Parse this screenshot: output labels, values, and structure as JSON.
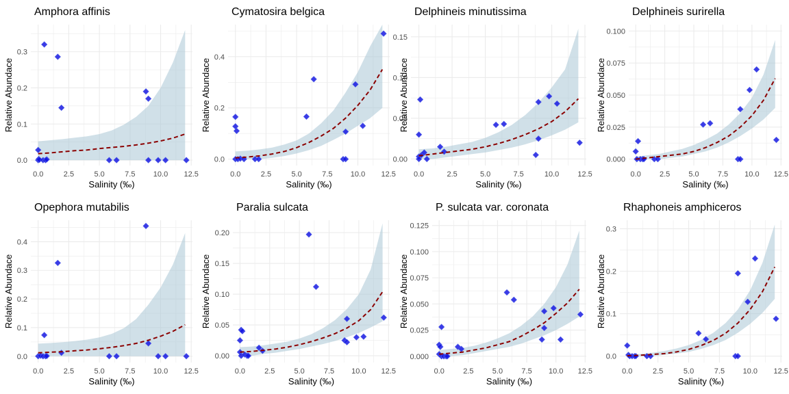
{
  "chart_data": [
    {
      "type": "scatter",
      "title": "Amphora affinis",
      "xlabel": "Salinity (‰)",
      "ylabel": "Relative Abundace",
      "xlim": [
        -0.6,
        12.6
      ],
      "ylim": [
        -0.015,
        0.375
      ],
      "xticks": [
        0,
        2.5,
        5,
        7.5,
        10,
        12.5
      ],
      "xtick_labels": [
        "0.0",
        "2.5",
        "5.0",
        "7.5",
        "10.0",
        "12.5"
      ],
      "yticks": [
        0,
        0.1,
        0.2,
        0.3
      ],
      "ytick_labels": [
        "0.0",
        "0.1",
        "0.2",
        "0.3"
      ],
      "points": [
        [
          0.0,
          0.028
        ],
        [
          0.0,
          0.0
        ],
        [
          0.05,
          0.003
        ],
        [
          0.1,
          0.001
        ],
        [
          0.4,
          0.0
        ],
        [
          0.5,
          0.32
        ],
        [
          0.6,
          0.0
        ],
        [
          0.7,
          0.002
        ],
        [
          1.6,
          0.286
        ],
        [
          1.9,
          0.145
        ],
        [
          5.8,
          0.0
        ],
        [
          6.4,
          0.0
        ],
        [
          8.8,
          0.19
        ],
        [
          9.0,
          0.17
        ],
        [
          9.0,
          0.0
        ],
        [
          9.8,
          0.0
        ],
        [
          10.4,
          0.0
        ],
        [
          12.1,
          0.0
        ]
      ],
      "fit": {
        "x": [
          0,
          1,
          2,
          3,
          4,
          5,
          6,
          7,
          8,
          9,
          10,
          11,
          12
        ],
        "y": [
          0.018,
          0.02,
          0.023,
          0.026,
          0.028,
          0.032,
          0.035,
          0.038,
          0.042,
          0.047,
          0.053,
          0.061,
          0.072
        ]
      },
      "ci_lower": [
        0.0,
        0.0,
        0.0,
        0.0,
        0.0,
        0.0,
        0.0,
        0.0,
        0.0,
        0.0,
        0.0,
        0.0,
        0.0
      ],
      "ci_upper": [
        0.052,
        0.055,
        0.058,
        0.062,
        0.066,
        0.072,
        0.082,
        0.098,
        0.12,
        0.15,
        0.2,
        0.27,
        0.36
      ]
    },
    {
      "type": "scatter",
      "title": "Cymatosira belgica",
      "xlabel": "Salinity (‰)",
      "ylabel": "Relative Abundace",
      "xlim": [
        -0.6,
        12.6
      ],
      "ylim": [
        -0.025,
        0.525
      ],
      "xticks": [
        0,
        2.5,
        5,
        7.5,
        10,
        12.5
      ],
      "xtick_labels": [
        "0.0",
        "2.5",
        "5.0",
        "7.5",
        "10.0",
        "12.5"
      ],
      "yticks": [
        0,
        0.2,
        0.4
      ],
      "ytick_labels": [
        "0.0",
        "0.2",
        "0.4"
      ],
      "points": [
        [
          0.0,
          0.165
        ],
        [
          0.0,
          0.128
        ],
        [
          0.1,
          0.11
        ],
        [
          0.0,
          0.0
        ],
        [
          0.2,
          0.0
        ],
        [
          0.4,
          0.002
        ],
        [
          0.7,
          0.0
        ],
        [
          1.6,
          0.0
        ],
        [
          1.9,
          0.0
        ],
        [
          5.8,
          0.166
        ],
        [
          6.4,
          0.312
        ],
        [
          8.8,
          0.0
        ],
        [
          9.0,
          0.0
        ],
        [
          9.0,
          0.107
        ],
        [
          9.8,
          0.292
        ],
        [
          10.4,
          0.13
        ],
        [
          12.1,
          0.49
        ]
      ],
      "fit": {
        "x": [
          0,
          1,
          2,
          3,
          4,
          5,
          6,
          7,
          8,
          9,
          10,
          11,
          12
        ],
        "y": [
          0.005,
          0.008,
          0.013,
          0.02,
          0.03,
          0.045,
          0.065,
          0.09,
          0.12,
          0.16,
          0.21,
          0.27,
          0.35
        ]
      },
      "ci_lower": [
        0.0,
        0.0,
        0.0,
        0.005,
        0.012,
        0.022,
        0.035,
        0.052,
        0.075,
        0.1,
        0.13,
        0.16,
        0.2
      ],
      "ci_upper": [
        0.03,
        0.033,
        0.038,
        0.045,
        0.057,
        0.073,
        0.1,
        0.14,
        0.19,
        0.26,
        0.34,
        0.44,
        0.55
      ]
    },
    {
      "type": "scatter",
      "title": "Delphineis minutissima",
      "xlabel": "Salinity (‰)",
      "ylabel": "Relative Abundace",
      "xlim": [
        -0.6,
        12.6
      ],
      "ylim": [
        -0.008,
        0.165
      ],
      "xticks": [
        0,
        2.5,
        5,
        7.5,
        10,
        12.5
      ],
      "xtick_labels": [
        "0.0",
        "2.5",
        "5.0",
        "7.5",
        "10.0",
        "12.5"
      ],
      "yticks": [
        0,
        0.05,
        0.1,
        0.15
      ],
      "ytick_labels": [
        "0.00",
        "0.05",
        "0.10",
        "0.15"
      ],
      "points": [
        [
          0.0,
          0.03
        ],
        [
          0.1,
          0.073
        ],
        [
          0.0,
          0.003
        ],
        [
          0.0,
          0.0
        ],
        [
          0.2,
          0.005
        ],
        [
          0.4,
          0.008
        ],
        [
          0.6,
          0.0
        ],
        [
          1.6,
          0.015
        ],
        [
          1.9,
          0.009
        ],
        [
          5.8,
          0.042
        ],
        [
          6.4,
          0.043
        ],
        [
          8.8,
          0.005
        ],
        [
          9.0,
          0.07
        ],
        [
          9.0,
          0.025
        ],
        [
          9.8,
          0.077
        ],
        [
          10.4,
          0.068
        ],
        [
          12.1,
          0.02
        ]
      ],
      "fit": {
        "x": [
          0,
          1,
          2,
          3,
          4,
          5,
          6,
          7,
          8,
          9,
          10,
          11,
          12
        ],
        "y": [
          0.004,
          0.006,
          0.008,
          0.01,
          0.012,
          0.015,
          0.019,
          0.024,
          0.03,
          0.037,
          0.046,
          0.058,
          0.074
        ]
      },
      "ci_lower": [
        0.0,
        0.0,
        0.002,
        0.004,
        0.006,
        0.008,
        0.011,
        0.014,
        0.018,
        0.023,
        0.029,
        0.036,
        0.045
      ],
      "ci_upper": [
        0.012,
        0.013,
        0.015,
        0.018,
        0.021,
        0.026,
        0.033,
        0.042,
        0.054,
        0.069,
        0.088,
        0.11,
        0.16
      ]
    },
    {
      "type": "scatter",
      "title": "Delphineis surirella",
      "xlabel": "Salinity (‰)",
      "ylabel": "Relative Abundace",
      "xlim": [
        -0.6,
        12.6
      ],
      "ylim": [
        -0.005,
        0.105
      ],
      "xticks": [
        0,
        2.5,
        5,
        7.5,
        10,
        12.5
      ],
      "xtick_labels": [
        "0.0",
        "2.5",
        "5.0",
        "7.5",
        "10.0",
        "12.5"
      ],
      "yticks": [
        0,
        0.025,
        0.05,
        0.075,
        0.1
      ],
      "ytick_labels": [
        "0.000",
        "0.025",
        "0.050",
        "0.075",
        "0.100"
      ],
      "points": [
        [
          0.0,
          0.006
        ],
        [
          0.1,
          0.0
        ],
        [
          0.2,
          0.014
        ],
        [
          0.4,
          0.0
        ],
        [
          0.6,
          0.0
        ],
        [
          0.7,
          0.0
        ],
        [
          1.6,
          0.0
        ],
        [
          1.9,
          0.0
        ],
        [
          5.8,
          0.027
        ],
        [
          6.4,
          0.028
        ],
        [
          8.8,
          0.0
        ],
        [
          9.0,
          0.0
        ],
        [
          9.0,
          0.039
        ],
        [
          9.8,
          0.054
        ],
        [
          10.4,
          0.07
        ],
        [
          12.1,
          0.015
        ]
      ],
      "fit": {
        "x": [
          0,
          1,
          2,
          3,
          4,
          5,
          6,
          7,
          8,
          9,
          10,
          11,
          12
        ],
        "y": [
          0.0,
          0.001,
          0.002,
          0.003,
          0.004,
          0.006,
          0.009,
          0.013,
          0.018,
          0.025,
          0.034,
          0.046,
          0.063
        ]
      },
      "ci_lower": [
        0.0,
        0.0,
        0.0,
        0.001,
        0.002,
        0.004,
        0.006,
        0.009,
        0.013,
        0.018,
        0.024,
        0.031,
        0.04
      ],
      "ci_upper": [
        0.002,
        0.003,
        0.004,
        0.006,
        0.008,
        0.011,
        0.015,
        0.02,
        0.027,
        0.036,
        0.048,
        0.066,
        0.093
      ]
    },
    {
      "type": "scatter",
      "title": "Opephora mutabilis",
      "xlabel": "Salinity (‰)",
      "ylabel": "Relative Abundace",
      "xlim": [
        -0.6,
        12.6
      ],
      "ylim": [
        -0.022,
        0.475
      ],
      "xticks": [
        0,
        2.5,
        5,
        7.5,
        10,
        12.5
      ],
      "xtick_labels": [
        "0.0",
        "2.5",
        "5.0",
        "7.5",
        "10.0",
        "12.5"
      ],
      "yticks": [
        0,
        0.1,
        0.2,
        0.3,
        0.4
      ],
      "ytick_labels": [
        "0.0",
        "0.1",
        "0.2",
        "0.3",
        "0.4"
      ],
      "points": [
        [
          0.0,
          0.0
        ],
        [
          0.2,
          0.002
        ],
        [
          0.4,
          0.0
        ],
        [
          0.5,
          0.074
        ],
        [
          0.6,
          0.0
        ],
        [
          0.7,
          0.001
        ],
        [
          1.6,
          0.326
        ],
        [
          1.9,
          0.012
        ],
        [
          5.8,
          0.0
        ],
        [
          6.4,
          0.0
        ],
        [
          8.8,
          0.455
        ],
        [
          9.0,
          0.045
        ],
        [
          9.8,
          0.0
        ],
        [
          10.4,
          0.0
        ],
        [
          12.1,
          0.0
        ]
      ],
      "fit": {
        "x": [
          0,
          1,
          2,
          3,
          4,
          5,
          6,
          7,
          8,
          9,
          10,
          11,
          12
        ],
        "y": [
          0.012,
          0.014,
          0.016,
          0.019,
          0.022,
          0.026,
          0.031,
          0.037,
          0.045,
          0.056,
          0.07,
          0.087,
          0.11
        ]
      },
      "ci_lower": [
        0.0,
        0.0,
        0.0,
        0.0,
        0.0,
        0.0,
        0.0,
        0.0,
        0.0,
        0.0,
        0.0,
        0.0,
        0.0
      ],
      "ci_upper": [
        0.044,
        0.046,
        0.049,
        0.053,
        0.058,
        0.066,
        0.078,
        0.098,
        0.13,
        0.18,
        0.24,
        0.32,
        0.43
      ]
    },
    {
      "type": "scatter",
      "title": "Paralia sulcata",
      "xlabel": "Salinity (‰)",
      "ylabel": "Relative Abundace",
      "xlim": [
        -0.6,
        12.6
      ],
      "ylim": [
        -0.011,
        0.22
      ],
      "xticks": [
        0,
        2.5,
        5,
        7.5,
        10,
        12.5
      ],
      "xtick_labels": [
        "0.0",
        "2.5",
        "5.0",
        "7.5",
        "10.0",
        "12.5"
      ],
      "yticks": [
        0,
        0.05,
        0.1,
        0.15,
        0.2
      ],
      "ytick_labels": [
        "0.00",
        "0.05",
        "0.10",
        "0.15",
        "0.20"
      ],
      "points": [
        [
          0.0,
          0.025
        ],
        [
          0.1,
          0.042
        ],
        [
          0.0,
          0.006
        ],
        [
          0.1,
          0.0
        ],
        [
          0.2,
          0.04
        ],
        [
          0.4,
          0.002
        ],
        [
          0.6,
          0.0
        ],
        [
          0.7,
          0.0
        ],
        [
          1.6,
          0.013
        ],
        [
          1.9,
          0.008
        ],
        [
          5.8,
          0.197
        ],
        [
          6.4,
          0.112
        ],
        [
          8.8,
          0.025
        ],
        [
          9.0,
          0.06
        ],
        [
          9.0,
          0.022
        ],
        [
          9.8,
          0.03
        ],
        [
          10.4,
          0.031
        ],
        [
          12.1,
          0.062
        ]
      ],
      "fit": {
        "x": [
          0,
          1,
          2,
          3,
          4,
          5,
          6,
          7,
          8,
          9,
          10,
          11,
          12
        ],
        "y": [
          0.006,
          0.007,
          0.009,
          0.011,
          0.014,
          0.018,
          0.023,
          0.029,
          0.036,
          0.045,
          0.057,
          0.075,
          0.104
        ]
      },
      "ci_lower": [
        0.0,
        0.0,
        0.003,
        0.005,
        0.008,
        0.011,
        0.015,
        0.019,
        0.024,
        0.03,
        0.037,
        0.046,
        0.056
      ],
      "ci_upper": [
        0.014,
        0.015,
        0.017,
        0.02,
        0.023,
        0.028,
        0.035,
        0.045,
        0.058,
        0.076,
        0.1,
        0.14,
        0.215
      ]
    },
    {
      "type": "scatter",
      "title": "P. sulcata var. coronata",
      "xlabel": "Salinity (‰)",
      "ylabel": "Relative Abundace",
      "xlim": [
        -0.6,
        12.6
      ],
      "ylim": [
        -0.006,
        0.13
      ],
      "xticks": [
        0,
        2.5,
        5,
        7.5,
        10,
        12.5
      ],
      "xtick_labels": [
        "0.0",
        "2.5",
        "5.0",
        "7.5",
        "10.0",
        "12.5"
      ],
      "yticks": [
        0,
        0.025,
        0.05,
        0.075,
        0.1,
        0.125
      ],
      "ytick_labels": [
        "0.000",
        "0.025",
        "0.050",
        "0.075",
        "0.100",
        "0.125"
      ],
      "points": [
        [
          0.0,
          0.011
        ],
        [
          0.1,
          0.009
        ],
        [
          0.0,
          0.002
        ],
        [
          0.2,
          0.028
        ],
        [
          0.2,
          0.0
        ],
        [
          0.4,
          0.0
        ],
        [
          0.6,
          0.0
        ],
        [
          0.7,
          0.0
        ],
        [
          1.6,
          0.009
        ],
        [
          1.9,
          0.007
        ],
        [
          5.8,
          0.061
        ],
        [
          6.4,
          0.054
        ],
        [
          8.8,
          0.016
        ],
        [
          9.0,
          0.043
        ],
        [
          9.0,
          0.027
        ],
        [
          9.8,
          0.046
        ],
        [
          10.4,
          0.016
        ],
        [
          12.1,
          0.04
        ]
      ],
      "fit": {
        "x": [
          0,
          1,
          2,
          3,
          4,
          5,
          6,
          7,
          8,
          9,
          10,
          11,
          12
        ],
        "y": [
          0.002,
          0.003,
          0.004,
          0.006,
          0.008,
          0.011,
          0.014,
          0.019,
          0.025,
          0.032,
          0.041,
          0.051,
          0.064
        ]
      },
      "ci_lower": [
        0.0,
        0.0,
        0.001,
        0.003,
        0.005,
        0.007,
        0.009,
        0.012,
        0.016,
        0.02,
        0.025,
        0.031,
        0.038
      ],
      "ci_upper": [
        0.006,
        0.007,
        0.008,
        0.01,
        0.013,
        0.017,
        0.022,
        0.029,
        0.038,
        0.05,
        0.066,
        0.088,
        0.12
      ]
    },
    {
      "type": "scatter",
      "title": "Rhaphoneis amphiceros",
      "xlabel": "Salinity (‰)",
      "ylabel": "Relative Abundace",
      "xlim": [
        -0.6,
        12.6
      ],
      "ylim": [
        -0.015,
        0.32
      ],
      "xticks": [
        0,
        2.5,
        5,
        7.5,
        10,
        12.5
      ],
      "xtick_labels": [
        "0.0",
        "2.5",
        "5.0",
        "7.5",
        "10.0",
        "12.5"
      ],
      "yticks": [
        0,
        0.1,
        0.2,
        0.3
      ],
      "ytick_labels": [
        "0.0",
        "0.1",
        "0.2",
        "0.3"
      ],
      "points": [
        [
          0.0,
          0.025
        ],
        [
          0.1,
          0.003
        ],
        [
          0.2,
          0.0
        ],
        [
          0.4,
          0.0
        ],
        [
          0.6,
          0.0
        ],
        [
          0.7,
          0.0
        ],
        [
          1.6,
          0.0
        ],
        [
          1.9,
          0.0
        ],
        [
          5.8,
          0.054
        ],
        [
          6.4,
          0.04
        ],
        [
          8.8,
          0.0
        ],
        [
          9.0,
          0.0
        ],
        [
          9.0,
          0.195
        ],
        [
          9.8,
          0.128
        ],
        [
          10.4,
          0.23
        ],
        [
          12.1,
          0.088
        ]
      ],
      "fit": {
        "x": [
          0,
          1,
          2,
          3,
          4,
          5,
          6,
          7,
          8,
          9,
          10,
          11,
          12
        ],
        "y": [
          0.001,
          0.002,
          0.004,
          0.006,
          0.01,
          0.016,
          0.025,
          0.037,
          0.054,
          0.078,
          0.11,
          0.152,
          0.21
        ]
      },
      "ci_lower": [
        0.0,
        0.0,
        0.0,
        0.003,
        0.006,
        0.01,
        0.017,
        0.026,
        0.038,
        0.055,
        0.076,
        0.102,
        0.135
      ],
      "ci_upper": [
        0.004,
        0.005,
        0.008,
        0.012,
        0.018,
        0.026,
        0.038,
        0.055,
        0.078,
        0.11,
        0.155,
        0.22,
        0.31
      ]
    }
  ],
  "colors": {
    "points": "#1010e0",
    "points_edge": "#5060e8",
    "fit_line": "#8b0000",
    "ci_band": "#a9c6d6",
    "grid": "#ebebeb"
  }
}
